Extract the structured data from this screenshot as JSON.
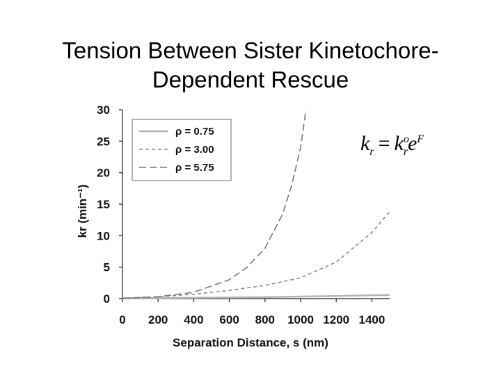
{
  "title": {
    "line1": "Tension Between Sister Kinetochore-",
    "line2": "Dependent Rescue"
  },
  "formula": {
    "lhs": "k",
    "lhs_sub": "r",
    "eq": "=",
    "rhs": "k",
    "rhs_sup": "o",
    "rhs_sub": "r",
    "exp_base": "e",
    "exp_sup": "F"
  },
  "chart_data": {
    "type": "line",
    "xlabel": "Separation Distance, s (nm)",
    "ylabel": "kr (min⁻¹)",
    "xlim": [
      0,
      1500
    ],
    "ylim": [
      0,
      30
    ],
    "x_ticks": [
      "0",
      "200",
      "400",
      "600",
      "800",
      "1000",
      "1200",
      "1400"
    ],
    "x_tick_values": [
      0,
      200,
      400,
      600,
      800,
      1000,
      1200,
      1400
    ],
    "y_ticks": [
      "0",
      "5",
      "10",
      "15",
      "20",
      "25",
      "30"
    ],
    "y_tick_values": [
      0,
      5,
      10,
      15,
      20,
      25,
      30
    ],
    "legend_position": "top-left",
    "series": [
      {
        "name": "ρ = 0.75",
        "style": "solid",
        "color": "#b4b4b4",
        "x": [
          0,
          200,
          400,
          600,
          800,
          1000,
          1200,
          1400,
          1500
        ],
        "y": [
          0.05,
          0.08,
          0.13,
          0.18,
          0.25,
          0.33,
          0.42,
          0.52,
          0.58
        ]
      },
      {
        "name": "ρ = 3.00",
        "style": "dashed",
        "color": "#888888",
        "x": [
          0,
          200,
          400,
          600,
          800,
          1000,
          1200,
          1400,
          1500
        ],
        "y": [
          0.05,
          0.3,
          0.7,
          1.3,
          2.1,
          3.3,
          5.8,
          10.5,
          13.8
        ]
      },
      {
        "name": "ρ = 5.75",
        "style": "longdash",
        "color": "#777777",
        "x": [
          0,
          200,
          400,
          600,
          700,
          800,
          900,
          950,
          1000,
          1030
        ],
        "y": [
          0.05,
          0.3,
          1.0,
          3.0,
          5.0,
          8.0,
          13.5,
          18.0,
          24.0,
          30.0
        ]
      }
    ]
  }
}
